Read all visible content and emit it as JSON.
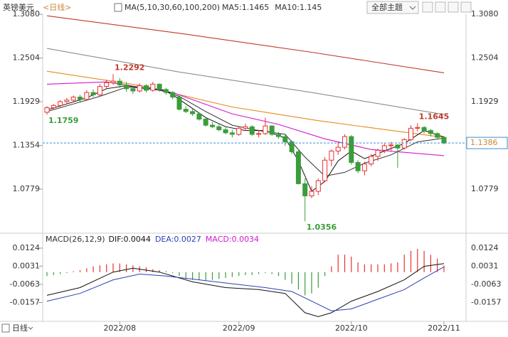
{
  "title": "英镑美元",
  "period": "<日线>",
  "ma_label": "MA(5,10,30,60,100,200)",
  "toolbar": {
    "theme_button": "全部主题",
    "period_button": "日线"
  },
  "chart_data": [
    {
      "type": "candlestick",
      "up_color": "#e8312f",
      "down_color": "#3a9d3a",
      "ylim": [
        1.0227,
        1.3174
      ],
      "yticks": [
        {
          "value": 1.308,
          "label": "1.3080"
        },
        1.2504,
        1.1929,
        1.1354,
        1.0779
      ],
      "grid": false,
      "ohlc": [
        [
          1.179,
          1.187,
          1.1759,
          1.185
        ],
        [
          1.185,
          1.19,
          1.182,
          1.188
        ],
        [
          1.188,
          1.195,
          1.186,
          1.193
        ],
        [
          1.193,
          1.198,
          1.19,
          1.195
        ],
        [
          1.195,
          1.201,
          1.192,
          1.199
        ],
        [
          1.199,
          1.202,
          1.193,
          1.196
        ],
        [
          1.196,
          1.208,
          1.194,
          1.205
        ],
        [
          1.205,
          1.209,
          1.199,
          1.202
        ],
        [
          1.202,
          1.216,
          1.2,
          1.213
        ],
        [
          1.213,
          1.222,
          1.21,
          1.218
        ],
        [
          1.218,
          1.2292,
          1.215,
          1.22
        ],
        [
          1.22,
          1.224,
          1.211,
          1.215
        ],
        [
          1.215,
          1.219,
          1.206,
          1.21
        ],
        [
          1.21,
          1.214,
          1.203,
          1.207
        ],
        [
          1.207,
          1.217,
          1.205,
          1.214
        ],
        [
          1.214,
          1.216,
          1.205,
          1.208
        ],
        [
          1.208,
          1.219,
          1.206,
          1.216
        ],
        [
          1.216,
          1.217,
          1.206,
          1.209
        ],
        [
          1.209,
          1.211,
          1.202,
          1.205
        ],
        [
          1.205,
          1.207,
          1.196,
          1.199
        ],
        [
          1.199,
          1.2,
          1.181,
          1.183
        ],
        [
          1.183,
          1.187,
          1.178,
          1.18
        ],
        [
          1.18,
          1.183,
          1.174,
          1.177
        ],
        [
          1.177,
          1.179,
          1.168,
          1.17
        ],
        [
          1.17,
          1.172,
          1.16,
          1.162
        ],
        [
          1.162,
          1.166,
          1.158,
          1.16
        ],
        [
          1.16,
          1.163,
          1.154,
          1.156
        ],
        [
          1.156,
          1.159,
          1.15,
          1.152
        ],
        [
          1.152,
          1.156,
          1.146,
          1.15
        ],
        [
          1.15,
          1.16,
          1.148,
          1.158
        ],
        [
          1.158,
          1.164,
          1.155,
          1.16
        ],
        [
          1.16,
          1.162,
          1.148,
          1.15
        ],
        [
          1.15,
          1.156,
          1.146,
          1.151
        ],
        [
          1.151,
          1.172,
          1.149,
          1.161
        ],
        [
          1.161,
          1.162,
          1.148,
          1.15
        ],
        [
          1.15,
          1.153,
          1.144,
          1.147
        ],
        [
          1.147,
          1.149,
          1.135,
          1.14
        ],
        [
          1.14,
          1.142,
          1.124,
          1.127
        ],
        [
          1.127,
          1.13,
          1.084,
          1.085
        ],
        [
          1.085,
          1.092,
          1.0356,
          1.069
        ],
        [
          1.069,
          1.082,
          1.066,
          1.075
        ],
        [
          1.075,
          1.092,
          1.07,
          1.089
        ],
        [
          1.089,
          1.12,
          1.087,
          1.116
        ],
        [
          1.116,
          1.13,
          1.108,
          1.128
        ],
        [
          1.128,
          1.14,
          1.123,
          1.133
        ],
        [
          1.133,
          1.15,
          1.13,
          1.147
        ],
        [
          1.147,
          1.149,
          1.11,
          1.113
        ],
        [
          1.113,
          1.116,
          1.099,
          1.102
        ],
        [
          1.102,
          1.114,
          1.096,
          1.111
        ],
        [
          1.111,
          1.124,
          1.108,
          1.121
        ],
        [
          1.121,
          1.131,
          1.115,
          1.129
        ],
        [
          1.129,
          1.138,
          1.125,
          1.135
        ],
        [
          1.135,
          1.14,
          1.128,
          1.136
        ],
        [
          1.136,
          1.137,
          1.106,
          1.132
        ],
        [
          1.132,
          1.145,
          1.13,
          1.143
        ],
        [
          1.143,
          1.162,
          1.141,
          1.158
        ],
        [
          1.158,
          1.1645,
          1.154,
          1.159
        ],
        [
          1.159,
          1.161,
          1.151,
          1.155
        ],
        [
          1.155,
          1.157,
          1.147,
          1.151
        ],
        [
          1.151,
          1.153,
          1.143,
          1.146
        ],
        [
          1.146,
          1.148,
          1.137,
          1.1386
        ]
      ],
      "ma_series": [
        {
          "label": "MA5:1.1465",
          "color": "#111111",
          "x": [
            0,
            3,
            6,
            9,
            12,
            15,
            18,
            21,
            24,
            27,
            30,
            33,
            36,
            38,
            40,
            42,
            44,
            46,
            48,
            51,
            54,
            57,
            60
          ],
          "values": [
            1.182,
            1.19,
            1.198,
            1.21,
            1.214,
            1.21,
            1.208,
            1.19,
            1.172,
            1.16,
            1.155,
            1.155,
            1.145,
            1.115,
            1.075,
            1.088,
            1.115,
            1.128,
            1.118,
            1.128,
            1.138,
            1.155,
            1.1465
          ]
        },
        {
          "label": "MA10:1.145",
          "color": "#333333",
          "x": [
            0,
            4,
            8,
            12,
            16,
            20,
            24,
            28,
            32,
            36,
            39,
            42,
            45,
            48,
            52,
            56,
            60
          ],
          "values": [
            1.18,
            1.19,
            1.2,
            1.212,
            1.211,
            1.2,
            1.18,
            1.162,
            1.155,
            1.15,
            1.12,
            1.095,
            1.1,
            1.112,
            1.123,
            1.14,
            1.145
          ]
        },
        {
          "color": "#d11ad1",
          "x": [
            0,
            9,
            19,
            28,
            35,
            42,
            49,
            60
          ],
          "values": [
            1.216,
            1.219,
            1.205,
            1.177,
            1.163,
            1.144,
            1.13,
            1.122
          ]
        },
        {
          "color": "#e88a1a",
          "x": [
            0,
            14,
            28,
            41,
            53,
            60
          ],
          "values": [
            1.233,
            1.2144,
            1.186,
            1.168,
            1.154,
            1.146
          ]
        },
        {
          "color": "#8c8c8c",
          "x": [
            0,
            20,
            40,
            60
          ],
          "values": [
            1.263,
            1.232,
            1.205,
            1.176
          ]
        },
        {
          "color": "#c0392b",
          "x": [
            0,
            20,
            40,
            60
          ],
          "values": [
            1.306,
            1.283,
            1.258,
            1.231
          ]
        }
      ],
      "annotations": [
        {
          "x": 10,
          "value": 1.2292,
          "label": "1.2292",
          "color": "#c0392b",
          "side": "above"
        },
        {
          "x": 0,
          "value": 1.1759,
          "label": "1.1759",
          "color": "#3a9d3a",
          "side": "below"
        },
        {
          "x": 39,
          "value": 1.0356,
          "label": "1.0356",
          "color": "#3a9d3a",
          "side": "below"
        },
        {
          "x": 56,
          "value": 1.1645,
          "label": "1.1645",
          "color": "#c0392b",
          "side": "above"
        }
      ],
      "last_price": {
        "value": 1.1386,
        "label": "1.1386",
        "color": "#3a8fd0"
      }
    },
    {
      "type": "macd",
      "title": "MACD(26,12,9)",
      "ylim": [
        -0.0247,
        0.0157
      ],
      "yticks": [
        0.0124,
        0.0031,
        -0.0063,
        -0.0157
      ],
      "up_color": "#e8312f",
      "down_color": "#3a9d3a",
      "categories": [
        null,
        null,
        null,
        null,
        null,
        null,
        null,
        null,
        null,
        null,
        null,
        "2022/08",
        null,
        null,
        null,
        null,
        null,
        null,
        null,
        null,
        null,
        null,
        null,
        null,
        null,
        null,
        null,
        null,
        null,
        "2022/09",
        null,
        null,
        null,
        null,
        null,
        null,
        null,
        null,
        null,
        null,
        null,
        null,
        null,
        null,
        null,
        null,
        "2022/10",
        null,
        null,
        null,
        null,
        null,
        null,
        null,
        null,
        null,
        null,
        null,
        null,
        null,
        "2022/11"
      ],
      "histogram": {
        "label": "MACD:0.0034",
        "color": "#d11ad1",
        "values": [
          -0.002,
          -0.0015,
          -0.001,
          -0.0005,
          0.0005,
          0.001,
          0.002,
          0.003,
          0.0035,
          0.004,
          0.0045,
          0.0045,
          0.004,
          0.0035,
          0.003,
          0.0025,
          0.0015,
          0.001,
          0.0005,
          -0.0005,
          -0.002,
          -0.0035,
          -0.004,
          -0.004,
          -0.0045,
          -0.004,
          -0.0035,
          -0.003,
          -0.0025,
          -0.002,
          -0.0015,
          -0.0015,
          -0.001,
          -0.0005,
          -0.001,
          -0.002,
          -0.004,
          -0.006,
          -0.009,
          -0.012,
          -0.011,
          -0.008,
          -0.002,
          0.003,
          0.009,
          0.009,
          0.008,
          0.005,
          0.004,
          0.004,
          0.004,
          0.004,
          0.0045,
          0.005,
          0.009,
          0.011,
          0.012,
          0.011,
          0.009,
          0.007,
          0.0034
        ]
      },
      "series": [
        {
          "label": "DIF:0.0044",
          "color": "#111111",
          "x": [
            0,
            5,
            10,
            13,
            17,
            22,
            27,
            32,
            36,
            39,
            41,
            43,
            46,
            50,
            54,
            57,
            60
          ],
          "values": [
            -0.012,
            -0.008,
            0.0,
            0.002,
            0.0,
            -0.005,
            -0.008,
            -0.009,
            -0.011,
            -0.021,
            -0.023,
            -0.021,
            -0.015,
            -0.01,
            -0.004,
            0.003,
            0.0044
          ]
        },
        {
          "label": "DEA:0.0027",
          "color": "#2b3fb8",
          "x": [
            0,
            5,
            10,
            14,
            18,
            23,
            28,
            33,
            37,
            40,
            43,
            46,
            50,
            54,
            57,
            60
          ],
          "values": [
            -0.015,
            -0.011,
            -0.004,
            -0.001,
            -0.002,
            -0.004,
            -0.006,
            -0.008,
            -0.01,
            -0.015,
            -0.02,
            -0.019,
            -0.014,
            -0.009,
            -0.003,
            0.0027
          ]
        }
      ]
    }
  ]
}
